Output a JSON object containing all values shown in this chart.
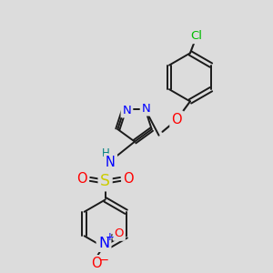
{
  "bg_color": "#dcdcdc",
  "bond_color": "#1a1a1a",
  "atom_colors": {
    "N": "#0000ff",
    "O": "#ff0000",
    "S": "#cccc00",
    "Cl": "#00bb00",
    "H": "#008080",
    "C": "#1a1a1a"
  },
  "font_size": 9.5,
  "figsize": [
    3.0,
    3.0
  ],
  "dpi": 100
}
